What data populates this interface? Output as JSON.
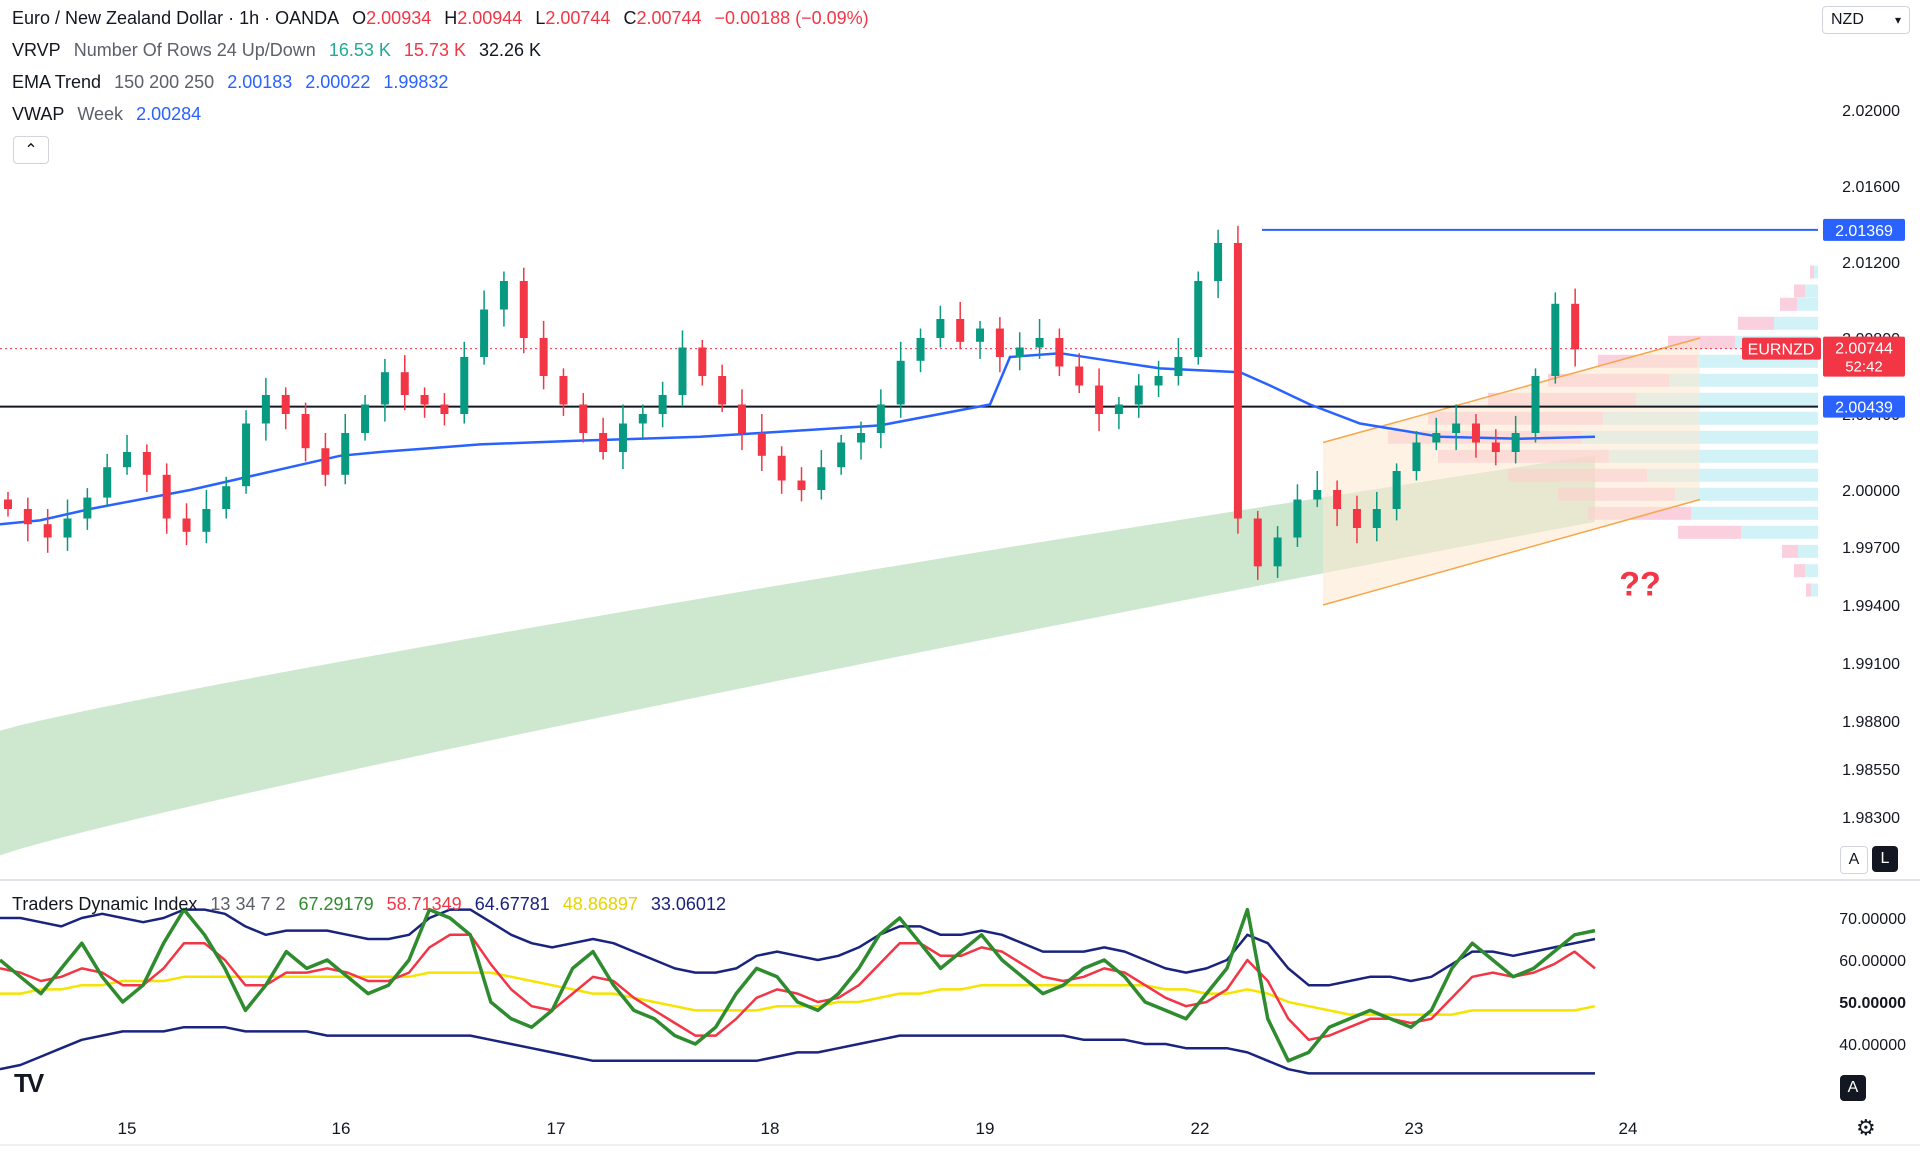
{
  "header": {
    "symbol": "Euro / New Zealand Dollar · 1h · OANDA",
    "o_label": "O",
    "o_value": "2.00934",
    "h_label": "H",
    "h_value": "2.00944",
    "l_label": "L",
    "l_value": "2.00744",
    "c_label": "C",
    "c_value": "2.00744",
    "change": "−0.00188 (−0.09%)"
  },
  "vrvp": {
    "name": "VRVP",
    "params": "Number Of Rows 24 Up/Down",
    "v1": "16.53 K",
    "v2": "15.73 K",
    "v3": "32.26 K"
  },
  "ema": {
    "name": "EMA Trend",
    "params": "150 200 250",
    "v1": "2.00183",
    "v2": "2.00022",
    "v3": "1.99832"
  },
  "vwap": {
    "name": "VWAP",
    "params": "Week",
    "v1": "2.00284"
  },
  "tdi": {
    "name": "Traders Dynamic Index",
    "params": "13 34 7 2",
    "v1": "67.29179",
    "v2": "58.71349",
    "v3": "64.67781",
    "v4": "48.86897",
    "v5": "33.06012"
  },
  "toolbar": {
    "currency": "NZD",
    "collapse_icon": "chevron-up-icon",
    "btn_a": "A",
    "btn_l": "L",
    "btn_a2": "A",
    "logo": "TV"
  },
  "annotation": "??",
  "price_labels": {
    "high_line": "2.01369",
    "current_symbol": "EURNZD",
    "current_price": "2.00744",
    "countdown": "52:42",
    "support_line": "2.00439"
  },
  "colors": {
    "up": "#089981",
    "down": "#f23645",
    "vwap": "#2962ff",
    "ema_fill": "#c8e6c9",
    "channel": "#f7a64a",
    "tdi_green": "#2e8b2e",
    "tdi_red": "#f23645",
    "tdi_band": "#1a237e",
    "tdi_mid": "#f5e400"
  },
  "chart_data": [
    {
      "type": "candlestick",
      "title": "Euro / New Zealand Dollar · 1h · OANDA",
      "x_ticks": [
        "15",
        "16",
        "17",
        "18",
        "19",
        "22",
        "23",
        "24"
      ],
      "y_ticks": [
        "2.02000",
        "2.01600",
        "2.01200",
        "2.00800",
        "2.00400",
        "2.00000",
        "1.99700",
        "1.99400",
        "1.99100",
        "1.98800",
        "1.98550",
        "1.98300"
      ],
      "ylim": [
        1.98,
        2.025
      ],
      "horizontal_lines": [
        {
          "label": "2.01369",
          "value": 2.01369
        },
        {
          "label": "2.00439",
          "value": 2.00439
        }
      ],
      "close_series_approx": [
        1.999,
        1.9982,
        1.9975,
        1.9985,
        1.9996,
        2.0012,
        2.002,
        2.0008,
        1.9985,
        1.9978,
        1.999,
        2.0002,
        2.0035,
        2.005,
        2.004,
        2.0022,
        2.0008,
        2.003,
        2.0045,
        2.0062,
        2.005,
        2.0045,
        2.004,
        2.007,
        2.0095,
        2.011,
        2.008,
        2.006,
        2.0045,
        2.003,
        2.002,
        2.0035,
        2.004,
        2.005,
        2.0075,
        2.006,
        2.0045,
        2.003,
        2.0018,
        2.0005,
        2.0,
        2.0012,
        2.0025,
        2.003,
        2.0045,
        2.0068,
        2.008,
        2.009,
        2.0078,
        2.0085,
        2.007,
        2.0075,
        2.008,
        2.0065,
        2.0055,
        2.004,
        2.0045,
        2.0055,
        2.006,
        2.007,
        2.011,
        2.013,
        1.9985,
        1.996,
        1.9975,
        1.9995,
        2.0,
        1.999,
        1.998,
        1.999,
        2.001,
        2.0025,
        2.003,
        2.0035,
        2.0025,
        2.002,
        2.003,
        2.006,
        2.0098,
        2.0074
      ],
      "vwap": 2.00284,
      "ema_band": {
        "upper_end": 2.00183,
        "lower_end": 1.99832
      },
      "channel": {
        "from": [
          1.994,
          2.0025
        ],
        "to": [
          1.9995,
          2.008
        ]
      }
    },
    {
      "type": "line",
      "title": "Traders Dynamic Index 13 34 7 2",
      "y_ticks": [
        "70.00000",
        "60.00000",
        "50.00000",
        "40.00000"
      ],
      "ylim": [
        30,
        75
      ],
      "series": [
        {
          "name": "67.29179",
          "values": [
            60,
            56,
            52,
            58,
            64,
            56,
            50,
            54,
            64,
            72,
            66,
            58,
            48,
            54,
            62,
            58,
            60,
            56,
            52,
            54,
            60,
            72,
            70,
            66,
            50,
            46,
            44,
            48,
            58,
            62,
            54,
            48,
            46,
            42,
            40,
            44,
            52,
            58,
            56,
            50,
            48,
            52,
            58,
            66,
            70,
            64,
            58,
            62,
            66,
            60,
            56,
            52,
            54,
            58,
            60,
            56,
            50,
            48,
            46,
            52,
            58,
            72,
            46,
            36,
            38,
            44,
            46,
            48,
            46,
            44,
            48,
            58,
            64,
            60,
            56,
            58,
            62,
            66,
            67
          ]
        },
        {
          "name": "58.71349",
          "values": [
            58,
            57,
            55,
            56,
            58,
            57,
            54,
            54,
            58,
            64,
            64,
            60,
            54,
            54,
            57,
            57,
            58,
            57,
            55,
            55,
            57,
            63,
            66,
            66,
            59,
            53,
            49,
            48,
            52,
            56,
            55,
            51,
            48,
            45,
            42,
            42,
            46,
            51,
            53,
            52,
            50,
            51,
            54,
            59,
            64,
            64,
            61,
            61,
            63,
            62,
            59,
            56,
            55,
            56,
            58,
            57,
            54,
            51,
            49,
            50,
            53,
            60,
            55,
            46,
            41,
            42,
            44,
            46,
            46,
            45,
            46,
            51,
            56,
            57,
            56,
            57,
            59,
            62,
            58
          ]
        },
        {
          "name": "64.67781",
          "values": [
            70,
            70,
            69,
            68,
            70,
            71,
            70,
            69,
            70,
            72,
            72,
            71,
            68,
            66,
            67,
            67,
            67,
            66,
            65,
            65,
            66,
            70,
            72,
            72,
            69,
            66,
            64,
            63,
            64,
            65,
            64,
            62,
            60,
            58,
            57,
            57,
            58,
            61,
            62,
            61,
            60,
            61,
            63,
            66,
            68,
            68,
            66,
            66,
            67,
            66,
            64,
            62,
            62,
            62,
            63,
            62,
            60,
            58,
            57,
            58,
            60,
            66,
            64,
            58,
            54,
            54,
            55,
            56,
            56,
            55,
            56,
            59,
            62,
            62,
            61,
            62,
            63,
            64,
            65
          ]
        },
        {
          "name": "48.86897",
          "values": [
            52,
            52,
            53,
            53,
            54,
            54,
            55,
            55,
            55,
            56,
            56,
            56,
            56,
            56,
            56,
            56,
            56,
            56,
            56,
            56,
            56,
            57,
            57,
            57,
            57,
            56,
            55,
            54,
            53,
            52,
            52,
            51,
            50,
            49,
            48,
            48,
            48,
            48,
            49,
            49,
            49,
            50,
            50,
            51,
            52,
            52,
            53,
            53,
            54,
            54,
            54,
            54,
            54,
            54,
            54,
            54,
            54,
            53,
            53,
            52,
            52,
            53,
            52,
            50,
            49,
            48,
            47,
            47,
            47,
            47,
            47,
            47,
            48,
            48,
            48,
            48,
            48,
            48,
            49
          ]
        },
        {
          "name": "33.06012",
          "values": [
            34,
            35,
            37,
            39,
            41,
            42,
            43,
            43,
            43,
            44,
            44,
            44,
            43,
            43,
            43,
            43,
            42,
            42,
            42,
            42,
            42,
            42,
            42,
            42,
            41,
            40,
            39,
            38,
            37,
            36,
            36,
            36,
            36,
            36,
            36,
            36,
            36,
            36,
            37,
            38,
            38,
            39,
            40,
            41,
            42,
            42,
            42,
            42,
            42,
            42,
            42,
            42,
            42,
            41,
            41,
            41,
            40,
            40,
            39,
            39,
            39,
            38,
            36,
            34,
            33,
            33,
            33,
            33,
            33,
            33,
            33,
            33,
            33,
            33,
            33,
            33,
            33,
            33,
            33
          ]
        }
      ]
    }
  ]
}
